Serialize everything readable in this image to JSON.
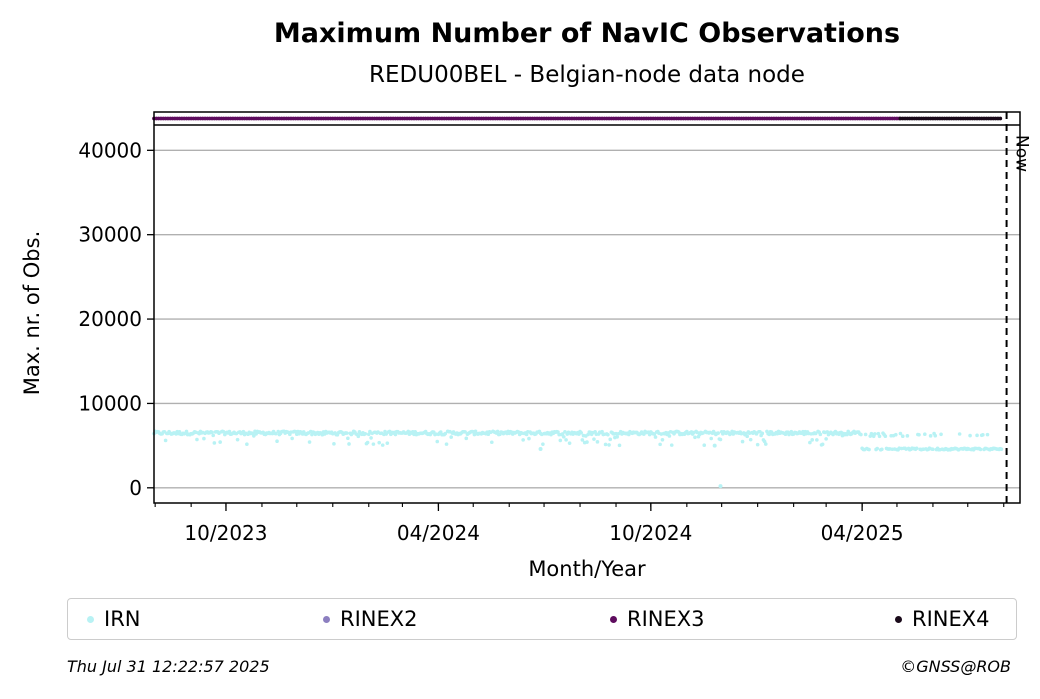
{
  "chart_data": {
    "type": "scatter",
    "title": "Maximum Number of NavIC Observations",
    "subtitle": "REDU00BEL - Belgian-node data node",
    "xlabel": "Month/Year",
    "ylabel": "Max. nr. of Obs.",
    "x_range": [
      "2023-07-31",
      "2025-08-15"
    ],
    "ylim": [
      -1800,
      43000
    ],
    "yticks": [
      0,
      10000,
      20000,
      30000,
      40000
    ],
    "xtick_labels": [
      {
        "date": "2023-10-01",
        "label": "10/2023"
      },
      {
        "date": "2024-04-01",
        "label": "04/2024"
      },
      {
        "date": "2024-10-01",
        "label": "10/2024"
      },
      {
        "date": "2025-04-01",
        "label": "04/2025"
      }
    ],
    "grid": "horizontal",
    "now_marker": {
      "label": "Now",
      "date": "2025-07-31"
    },
    "format_strip": [
      {
        "name": "RINEX3",
        "color": "#5e0c5e",
        "from": "2023-07-31",
        "to": "2025-05-04"
      },
      {
        "name": "RINEX4",
        "color": "#1a0a1a",
        "from": "2025-05-04",
        "to": "2025-07-30"
      }
    ],
    "series": [
      {
        "name": "IRN",
        "color": "#b8f2f4",
        "segments": [
          {
            "from": "2023-07-31",
            "to": "2025-03-31",
            "typical": 6500,
            "low": 5000
          },
          {
            "from": "2025-04-01",
            "to": "2025-07-30",
            "typical": 4600,
            "high": 6300
          }
        ],
        "outliers": [
          {
            "date": "2024-11-30",
            "value": 200
          },
          {
            "date": "2024-06-28",
            "value": 4600
          },
          {
            "date": "2024-11-25",
            "value": 5000
          }
        ]
      }
    ],
    "legend": {
      "position": "bottom",
      "entries": [
        {
          "label": "IRN",
          "color": "#b8f2f4"
        },
        {
          "label": "RINEX2",
          "color": "#8c7fc0"
        },
        {
          "label": "RINEX3",
          "color": "#5e0c5e"
        },
        {
          "label": "RINEX4",
          "color": "#1a0a1a"
        }
      ]
    }
  },
  "footer": {
    "timestamp": "Thu Jul 31 12:22:57 2025",
    "credit": "©GNSS@ROB"
  }
}
